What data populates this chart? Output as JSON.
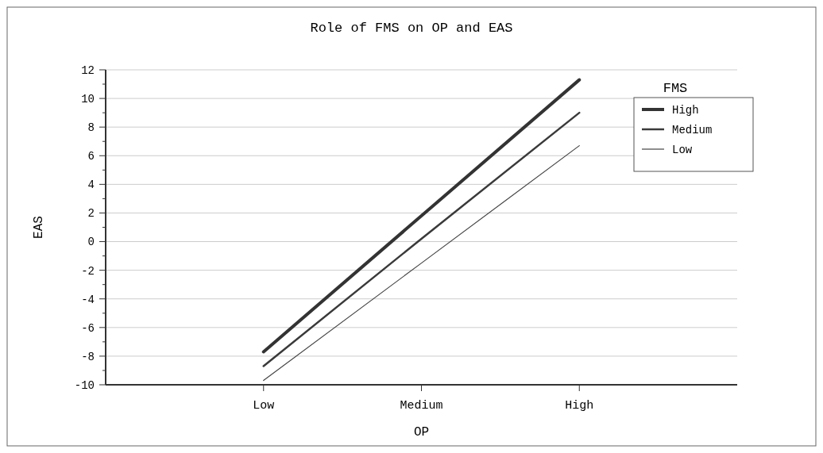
{
  "chart_data": {
    "type": "line",
    "title": "Role of FMS on OP and EAS",
    "xlabel": "OP",
    "ylabel": "EAS",
    "legend_title": "FMS",
    "categories": [
      "Low",
      "Medium",
      "High"
    ],
    "series": [
      {
        "name": "High",
        "color": "#333333",
        "values": [
          -7.7,
          1.8,
          11.3
        ]
      },
      {
        "name": "Medium",
        "color": "#3a3a3a",
        "values": [
          -8.7,
          0.2,
          9.0
        ]
      },
      {
        "name": "Low",
        "color": "#444444",
        "values": [
          -9.7,
          -1.5,
          6.7
        ]
      }
    ],
    "ylim": [
      -10,
      12
    ],
    "yticks": [
      -10,
      -8,
      -6,
      -4,
      -2,
      0,
      2,
      4,
      6,
      8,
      10,
      12
    ],
    "grid": "y",
    "legend": "top right",
    "marker": "none",
    "line_style": "solid"
  }
}
